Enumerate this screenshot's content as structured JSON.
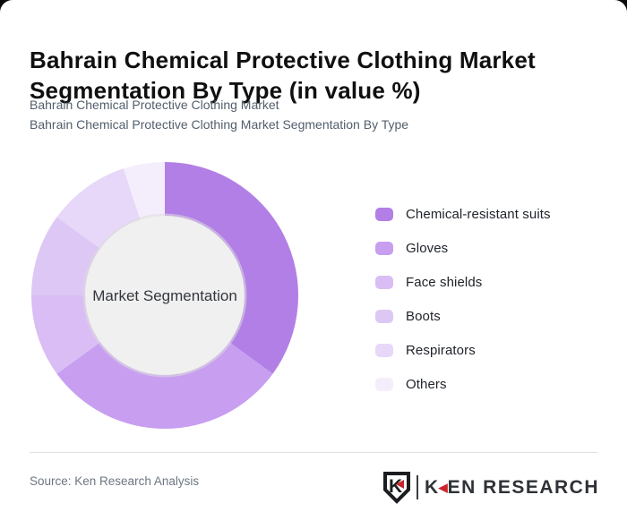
{
  "header": {
    "title": "Bahrain Chemical Protective Clothing Market Segmentation By Type (in value %)",
    "subtitle_line1": "Bahrain Chemical Protective Clothing Market",
    "subtitle_line2": "Bahrain Chemical Protective Clothing Market Segmentation By Type"
  },
  "chart_data": {
    "type": "pie",
    "variant": "donut",
    "units": "value %",
    "direction": "clockwise",
    "start_angle_deg": 0,
    "center_label": "Market Segmentation",
    "inner_circle_color": "#f0f0f0",
    "inner_circle_shadow": "#dcdcdc",
    "legend_position": "right",
    "series": [
      {
        "name": "Chemical-resistant suits",
        "value": 35,
        "color": "#b27fe6"
      },
      {
        "name": "Gloves",
        "value": 30,
        "color": "#c79ef0"
      },
      {
        "name": "Face shields",
        "value": 10,
        "color": "#d9bdf4"
      },
      {
        "name": "Boots",
        "value": 10,
        "color": "#ddc8f5"
      },
      {
        "name": "Respirators",
        "value": 10,
        "color": "#e7d8f9"
      },
      {
        "name": "Others",
        "value": 5,
        "color": "#f4eefc"
      }
    ]
  },
  "footer": {
    "source": "Source: Ken Research Analysis",
    "logo": {
      "emblem_letter": "K",
      "brand_k": "K",
      "brand_rest": "EN RESEARCH",
      "accent_color": "#c9252c",
      "text_color": "#2f3237"
    }
  }
}
